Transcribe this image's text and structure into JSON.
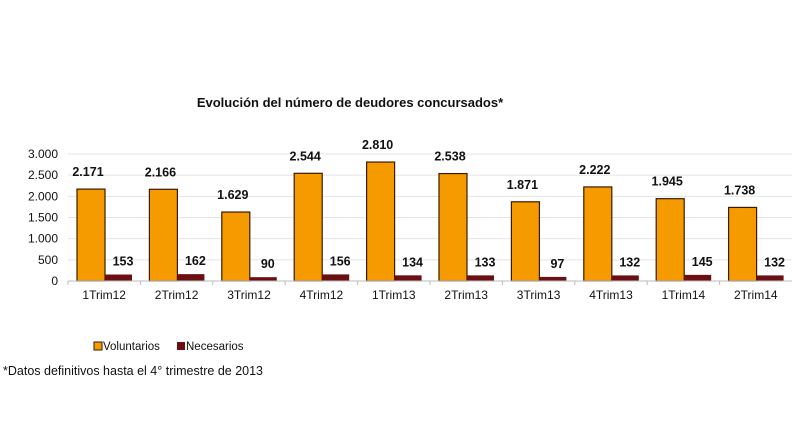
{
  "chart_data": {
    "type": "bar",
    "title": "Evolución del número de  deudores concursados*",
    "categories": [
      "1Trim12",
      "2Trim12",
      "3Trim12",
      "4Trim12",
      "1Trim13",
      "2Trim13",
      "3Trim13",
      "4Trim13",
      "1Trim14",
      "2Trim14"
    ],
    "series": [
      {
        "name": "Voluntarios",
        "color": "#F59B00",
        "values": [
          2171,
          2166,
          1629,
          2544,
          2810,
          2538,
          1871,
          2222,
          1945,
          1738
        ],
        "labels": [
          "2.171",
          "2.166",
          "1.629",
          "2.544",
          "2.810",
          "2.538",
          "1.871",
          "2.222",
          "1.945",
          "1.738"
        ]
      },
      {
        "name": "Necesarios",
        "color": "#6B0F12",
        "values": [
          153,
          162,
          90,
          156,
          134,
          133,
          97,
          132,
          145,
          132
        ],
        "labels": [
          "153",
          "162",
          "90",
          "156",
          "134",
          "133",
          "97",
          "132",
          "145",
          "132"
        ]
      }
    ],
    "ylim": [
      0,
      3000
    ],
    "yticks": [
      0,
      500,
      1000,
      1500,
      2000,
      2500,
      3000
    ],
    "ytick_labels": [
      "0",
      "500",
      "1.000",
      "1.500",
      "2.000",
      "2.500",
      "3.000"
    ],
    "grid": true,
    "legend_position": "bottom-left",
    "footnote": "*Datos definitivos hasta el 4° trimestre de 2013"
  }
}
